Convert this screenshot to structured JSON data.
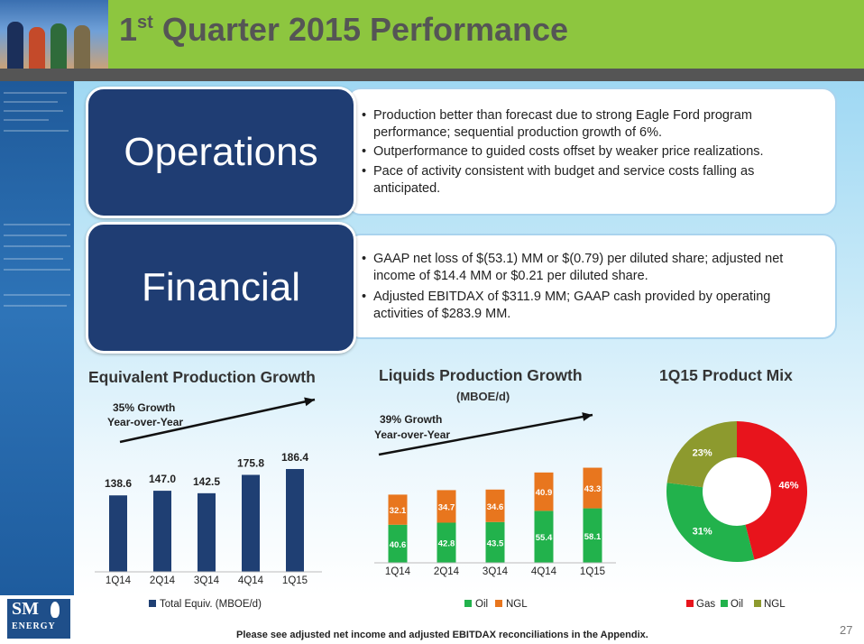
{
  "header": {
    "title_prefix": "1",
    "title_sup": "st",
    "title_rest": " Quarter 2015 Performance"
  },
  "operations": {
    "label": "Operations",
    "bullets": [
      "Production better than forecast due to strong Eagle Ford program performance; sequential production growth of 6%.",
      "Outperformance to guided costs offset by weaker price realizations.",
      "Pace of activity consistent with budget and service costs falling as anticipated."
    ]
  },
  "financial": {
    "label": "Financial",
    "bullets": [
      "GAAP net loss of $(53.1) MM or $(0.79) per diluted share; adjusted net income of $14.4 MM or $0.21  per diluted share.",
      "Adjusted EBITDAX of $311.9 MM; GAAP cash provided by operating activities of $283.9 MM."
    ]
  },
  "colors": {
    "total": "#1f3f73",
    "oil": "#22b24c",
    "ngl": "#e8761e",
    "gas": "#e8141c",
    "ngl_pie": "#8d9a2e"
  },
  "chart_data": [
    {
      "type": "bar",
      "title": "Equivalent Production Growth",
      "categories": [
        "1Q14",
        "2Q14",
        "3Q14",
        "4Q14",
        "1Q15"
      ],
      "series": [
        {
          "name": "Total Equiv. (MBOE/d)",
          "values": [
            138.6,
            147.0,
            142.5,
            175.8,
            186.4
          ]
        }
      ],
      "value_labels": [
        "138.6",
        "147.0",
        "142.5",
        "175.8",
        "186.4"
      ],
      "annotation": [
        "35% Growth",
        "Year-over-Year"
      ],
      "ylim": [
        0,
        200
      ],
      "legend": "bottom",
      "grid": false
    },
    {
      "type": "bar",
      "stacked": true,
      "title": "Liquids Production Growth",
      "subtitle": "(MBOE/d)",
      "categories": [
        "1Q14",
        "2Q14",
        "3Q14",
        "4Q14",
        "1Q15"
      ],
      "series": [
        {
          "name": "Oil",
          "values": [
            40.6,
            42.8,
            43.5,
            55.4,
            58.1
          ]
        },
        {
          "name": "NGL",
          "values": [
            32.1,
            34.7,
            34.6,
            40.9,
            43.3
          ]
        }
      ],
      "annotation": [
        "39% Growth",
        "Year-over-Year"
      ],
      "ylim": [
        0,
        110
      ],
      "legend": "bottom",
      "grid": false
    },
    {
      "type": "pie",
      "donut": true,
      "title": "1Q15 Product Mix",
      "labels": [
        "Gas",
        "Oil",
        "NGL"
      ],
      "values": [
        46,
        31,
        23
      ],
      "value_labels": [
        "46%",
        "31%",
        "23%"
      ],
      "legend": "bottom"
    }
  ],
  "footer": {
    "note": "Please see adjusted net income and adjusted EBITDAX reconciliations in the Appendix.",
    "page": "27",
    "logo_top": "SM",
    "logo_bottom": "ENERGY"
  }
}
